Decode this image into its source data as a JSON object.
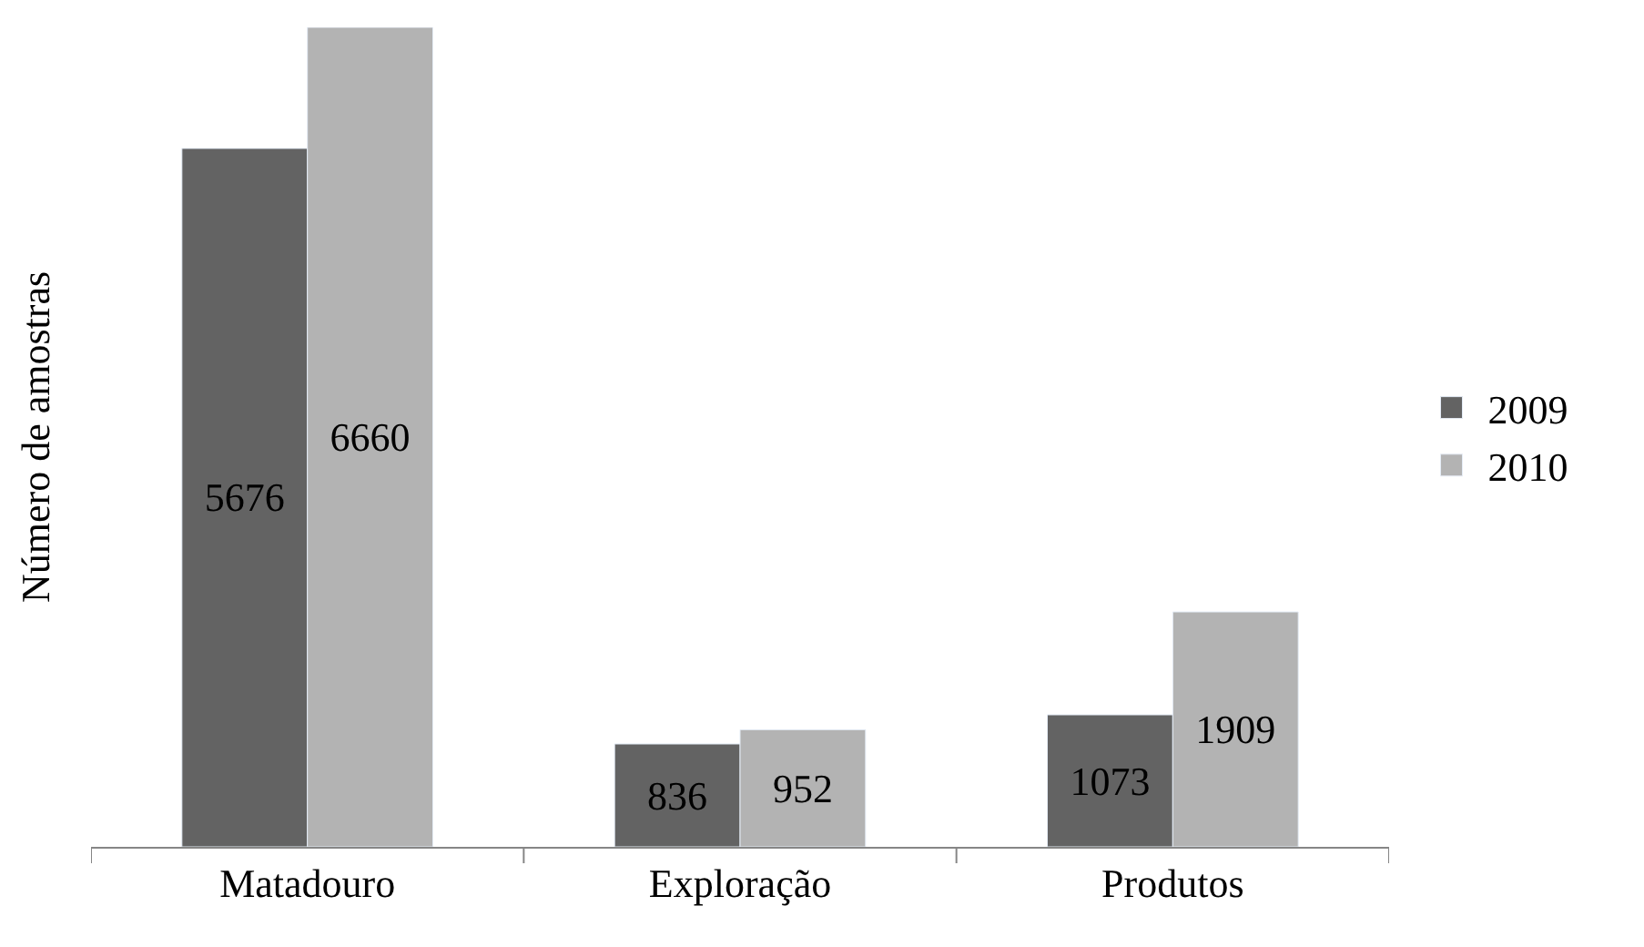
{
  "chart_data": {
    "type": "bar",
    "ylabel": "Número de amostras",
    "categories": [
      "Matadouro",
      "Exploração",
      "Produtos"
    ],
    "series": [
      {
        "name": "2009",
        "color": "#636363",
        "values": [
          5676,
          836,
          1073
        ]
      },
      {
        "name": "2010",
        "color": "#b3b3b3",
        "values": [
          6660,
          952,
          1909
        ]
      }
    ],
    "data_labels": true,
    "legend": "right",
    "tick_labels": "x"
  }
}
